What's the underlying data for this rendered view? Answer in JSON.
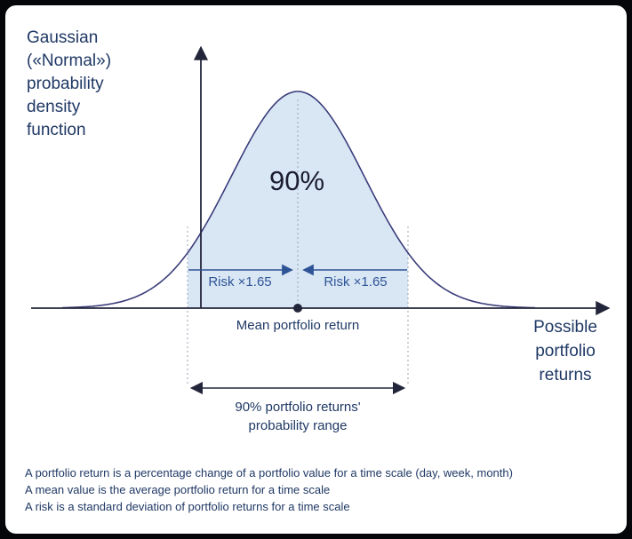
{
  "title": {
    "lines": [
      "Gaussian",
      "(«Normal»)",
      "probability",
      "density",
      "function"
    ]
  },
  "curve": {
    "confidence_label": "90%",
    "risk_left": "Risk ×1.65",
    "risk_right": "Risk ×1.65"
  },
  "axis": {
    "mean_label": "Mean portfolio return",
    "x_label_lines": [
      "Possible",
      "portfolio",
      "returns"
    ]
  },
  "range": {
    "lines": [
      "90% portfolio returns'",
      "probability range"
    ]
  },
  "footnotes": [
    "A portfolio return is a percentage change of a portfolio value for a time scale (day, week, month)",
    "A mean value is the average portfolio return for a time scale",
    "A risk is a standard deviation of portfolio returns for a time scale"
  ],
  "colors": {
    "navy": "#1f3864",
    "risk_blue": "#2f5496",
    "curve_stroke": "#3a3d7a",
    "curve_fill": "#d9e7f5",
    "axis_dark": "#23263a",
    "dotted_gray": "#98a3b3",
    "panel_bg": "#ffffff",
    "frame_bg": "#05060a"
  }
}
